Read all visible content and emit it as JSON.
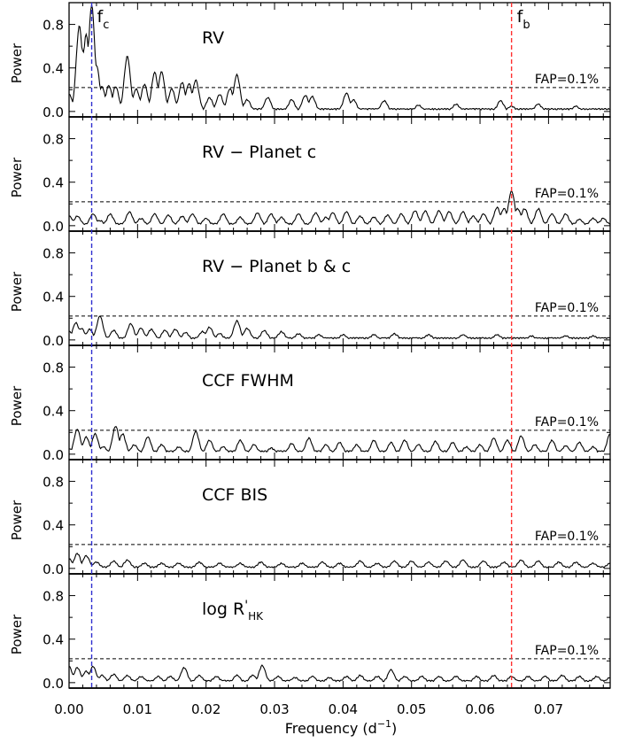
{
  "chart_data": {
    "type": "line",
    "xlabel_main": "Frequency (d",
    "xlabel_exp": "−1",
    "xlabel_close": ")",
    "ylabel": "Power",
    "xlim": [
      0.0,
      0.079
    ],
    "ylim": [
      -0.05,
      1.0
    ],
    "x_ticks": [
      "0.00",
      "0.01",
      "0.02",
      "0.03",
      "0.04",
      "0.05",
      "0.06",
      "0.07"
    ],
    "y_ticks": [
      "0.0",
      "0.4",
      "0.8"
    ],
    "fap_level": 0.22,
    "fap_label": "FAP=0.1%",
    "colors": {
      "fc": "#2f2fd0",
      "fb": "#ff3030",
      "line": "#000000"
    },
    "markers": [
      {
        "id": "fc",
        "label": "f",
        "sub": "c",
        "x": 0.0033,
        "color": "#2f2fd0"
      },
      {
        "id": "fb",
        "label": "f",
        "sub": "b",
        "x": 0.0646,
        "color": "#ff3030"
      }
    ],
    "panels": [
      {
        "title": "RV",
        "peaks": [
          [
            0.0,
            0.15
          ],
          [
            0.0015,
            0.78
          ],
          [
            0.002,
            0.55
          ],
          [
            0.0025,
            0.7
          ],
          [
            0.0033,
            0.97
          ],
          [
            0.004,
            0.42
          ],
          [
            0.0048,
            0.22
          ],
          [
            0.0058,
            0.23
          ],
          [
            0.0068,
            0.22
          ],
          [
            0.0085,
            0.5
          ],
          [
            0.0098,
            0.2
          ],
          [
            0.011,
            0.24
          ],
          [
            0.0125,
            0.35
          ],
          [
            0.0135,
            0.36
          ],
          [
            0.015,
            0.2
          ],
          [
            0.0165,
            0.26
          ],
          [
            0.0175,
            0.25
          ],
          [
            0.0185,
            0.28
          ],
          [
            0.0205,
            0.12
          ],
          [
            0.022,
            0.15
          ],
          [
            0.0235,
            0.2
          ],
          [
            0.0245,
            0.33
          ],
          [
            0.026,
            0.1
          ],
          [
            0.029,
            0.12
          ],
          [
            0.0325,
            0.1
          ],
          [
            0.0345,
            0.14
          ],
          [
            0.0355,
            0.13
          ],
          [
            0.0405,
            0.16
          ],
          [
            0.0415,
            0.1
          ],
          [
            0.046,
            0.09
          ],
          [
            0.051,
            0.05
          ],
          [
            0.0565,
            0.06
          ],
          [
            0.063,
            0.09
          ],
          [
            0.0646,
            0.04
          ],
          [
            0.0685,
            0.06
          ],
          [
            0.074,
            0.04
          ]
        ],
        "floor": 0.015
      },
      {
        "title": "RV − Planet c",
        "peaks": [
          [
            0.0,
            0.08
          ],
          [
            0.0012,
            0.08
          ],
          [
            0.0035,
            0.1
          ],
          [
            0.0045,
            0.04
          ],
          [
            0.006,
            0.1
          ],
          [
            0.0088,
            0.12
          ],
          [
            0.0105,
            0.06
          ],
          [
            0.0125,
            0.1
          ],
          [
            0.0145,
            0.09
          ],
          [
            0.0165,
            0.08
          ],
          [
            0.018,
            0.1
          ],
          [
            0.02,
            0.06
          ],
          [
            0.0225,
            0.1
          ],
          [
            0.025,
            0.07
          ],
          [
            0.0275,
            0.11
          ],
          [
            0.0295,
            0.1
          ],
          [
            0.031,
            0.07
          ],
          [
            0.0335,
            0.1
          ],
          [
            0.036,
            0.11
          ],
          [
            0.0375,
            0.07
          ],
          [
            0.0385,
            0.11
          ],
          [
            0.0405,
            0.12
          ],
          [
            0.0425,
            0.08
          ],
          [
            0.0445,
            0.07
          ],
          [
            0.0465,
            0.09
          ],
          [
            0.0485,
            0.1
          ],
          [
            0.0505,
            0.13
          ],
          [
            0.052,
            0.13
          ],
          [
            0.054,
            0.13
          ],
          [
            0.0555,
            0.12
          ],
          [
            0.0575,
            0.12
          ],
          [
            0.059,
            0.08
          ],
          [
            0.0605,
            0.1
          ],
          [
            0.0625,
            0.16
          ],
          [
            0.0635,
            0.15
          ],
          [
            0.0646,
            0.31
          ],
          [
            0.0655,
            0.15
          ],
          [
            0.0665,
            0.15
          ],
          [
            0.0685,
            0.15
          ],
          [
            0.0705,
            0.1
          ],
          [
            0.0725,
            0.1
          ],
          [
            0.0745,
            0.05
          ],
          [
            0.0765,
            0.06
          ],
          [
            0.078,
            0.06
          ]
        ],
        "floor": 0.01
      },
      {
        "title": "RV − Planet b & c",
        "peaks": [
          [
            0.0,
            0.07
          ],
          [
            0.001,
            0.15
          ],
          [
            0.0018,
            0.1
          ],
          [
            0.003,
            0.09
          ],
          [
            0.0045,
            0.21
          ],
          [
            0.0065,
            0.08
          ],
          [
            0.009,
            0.14
          ],
          [
            0.0105,
            0.1
          ],
          [
            0.012,
            0.09
          ],
          [
            0.014,
            0.08
          ],
          [
            0.0155,
            0.09
          ],
          [
            0.017,
            0.06
          ],
          [
            0.0195,
            0.07
          ],
          [
            0.0205,
            0.11
          ],
          [
            0.022,
            0.05
          ],
          [
            0.0245,
            0.17
          ],
          [
            0.026,
            0.1
          ],
          [
            0.0285,
            0.08
          ],
          [
            0.031,
            0.07
          ],
          [
            0.0335,
            0.05
          ],
          [
            0.0365,
            0.04
          ],
          [
            0.04,
            0.04
          ],
          [
            0.0445,
            0.04
          ],
          [
            0.0475,
            0.05
          ],
          [
            0.0525,
            0.04
          ],
          [
            0.0575,
            0.04
          ],
          [
            0.0625,
            0.04
          ],
          [
            0.0675,
            0.03
          ],
          [
            0.0725,
            0.03
          ],
          [
            0.0765,
            0.03
          ]
        ],
        "floor": 0.01
      },
      {
        "title": "CCF FWHM",
        "peaks": [
          [
            0.0,
            0.04
          ],
          [
            0.0012,
            0.22
          ],
          [
            0.0025,
            0.15
          ],
          [
            0.0038,
            0.18
          ],
          [
            0.005,
            0.06
          ],
          [
            0.0068,
            0.25
          ],
          [
            0.0078,
            0.18
          ],
          [
            0.0095,
            0.08
          ],
          [
            0.0115,
            0.15
          ],
          [
            0.0135,
            0.08
          ],
          [
            0.016,
            0.06
          ],
          [
            0.0185,
            0.2
          ],
          [
            0.0205,
            0.12
          ],
          [
            0.0225,
            0.06
          ],
          [
            0.025,
            0.12
          ],
          [
            0.027,
            0.08
          ],
          [
            0.0295,
            0.05
          ],
          [
            0.0325,
            0.09
          ],
          [
            0.035,
            0.14
          ],
          [
            0.0375,
            0.08
          ],
          [
            0.0395,
            0.1
          ],
          [
            0.042,
            0.08
          ],
          [
            0.0445,
            0.12
          ],
          [
            0.047,
            0.1
          ],
          [
            0.049,
            0.12
          ],
          [
            0.051,
            0.08
          ],
          [
            0.0535,
            0.11
          ],
          [
            0.056,
            0.1
          ],
          [
            0.058,
            0.06
          ],
          [
            0.06,
            0.08
          ],
          [
            0.062,
            0.14
          ],
          [
            0.064,
            0.12
          ],
          [
            0.066,
            0.16
          ],
          [
            0.068,
            0.08
          ],
          [
            0.0705,
            0.12
          ],
          [
            0.0725,
            0.07
          ],
          [
            0.0745,
            0.1
          ],
          [
            0.0765,
            0.06
          ],
          [
            0.079,
            0.18
          ]
        ],
        "floor": 0.02
      },
      {
        "title": "CCF BIS",
        "peaks": [
          [
            0.0,
            0.08
          ],
          [
            0.0012,
            0.13
          ],
          [
            0.0025,
            0.11
          ],
          [
            0.004,
            0.05
          ],
          [
            0.0065,
            0.06
          ],
          [
            0.0085,
            0.07
          ],
          [
            0.011,
            0.04
          ],
          [
            0.0135,
            0.04
          ],
          [
            0.016,
            0.04
          ],
          [
            0.019,
            0.05
          ],
          [
            0.022,
            0.04
          ],
          [
            0.025,
            0.04
          ],
          [
            0.028,
            0.05
          ],
          [
            0.031,
            0.04
          ],
          [
            0.034,
            0.04
          ],
          [
            0.037,
            0.05
          ],
          [
            0.0395,
            0.04
          ],
          [
            0.0425,
            0.06
          ],
          [
            0.045,
            0.04
          ],
          [
            0.0475,
            0.06
          ],
          [
            0.05,
            0.06
          ],
          [
            0.0525,
            0.05
          ],
          [
            0.055,
            0.06
          ],
          [
            0.0575,
            0.07
          ],
          [
            0.0605,
            0.06
          ],
          [
            0.0635,
            0.05
          ],
          [
            0.066,
            0.07
          ],
          [
            0.0685,
            0.06
          ],
          [
            0.0715,
            0.05
          ],
          [
            0.074,
            0.05
          ],
          [
            0.0765,
            0.04
          ],
          [
            0.079,
            0.04
          ]
        ],
        "floor": 0.005
      },
      {
        "title": "log R",
        "peaks": [
          [
            0.0,
            0.14
          ],
          [
            0.0012,
            0.13
          ],
          [
            0.0025,
            0.1
          ],
          [
            0.0035,
            0.14
          ],
          [
            0.0048,
            0.06
          ],
          [
            0.0065,
            0.07
          ],
          [
            0.0085,
            0.06
          ],
          [
            0.0105,
            0.05
          ],
          [
            0.013,
            0.05
          ],
          [
            0.0148,
            0.05
          ],
          [
            0.0168,
            0.13
          ],
          [
            0.019,
            0.06
          ],
          [
            0.0215,
            0.05
          ],
          [
            0.0245,
            0.06
          ],
          [
            0.0268,
            0.06
          ],
          [
            0.0282,
            0.15
          ],
          [
            0.0305,
            0.05
          ],
          [
            0.033,
            0.04
          ],
          [
            0.0355,
            0.05
          ],
          [
            0.038,
            0.04
          ],
          [
            0.0405,
            0.05
          ],
          [
            0.0425,
            0.06
          ],
          [
            0.045,
            0.05
          ],
          [
            0.047,
            0.11
          ],
          [
            0.049,
            0.05
          ],
          [
            0.0515,
            0.05
          ],
          [
            0.054,
            0.05
          ],
          [
            0.0565,
            0.05
          ],
          [
            0.0595,
            0.05
          ],
          [
            0.062,
            0.06
          ],
          [
            0.0646,
            0.05
          ],
          [
            0.067,
            0.05
          ],
          [
            0.0695,
            0.05
          ],
          [
            0.072,
            0.06
          ],
          [
            0.0745,
            0.05
          ],
          [
            0.077,
            0.05
          ],
          [
            0.079,
            0.04
          ]
        ],
        "floor": 0.01,
        "title_super": "'",
        "title_sub": "HK"
      }
    ]
  }
}
